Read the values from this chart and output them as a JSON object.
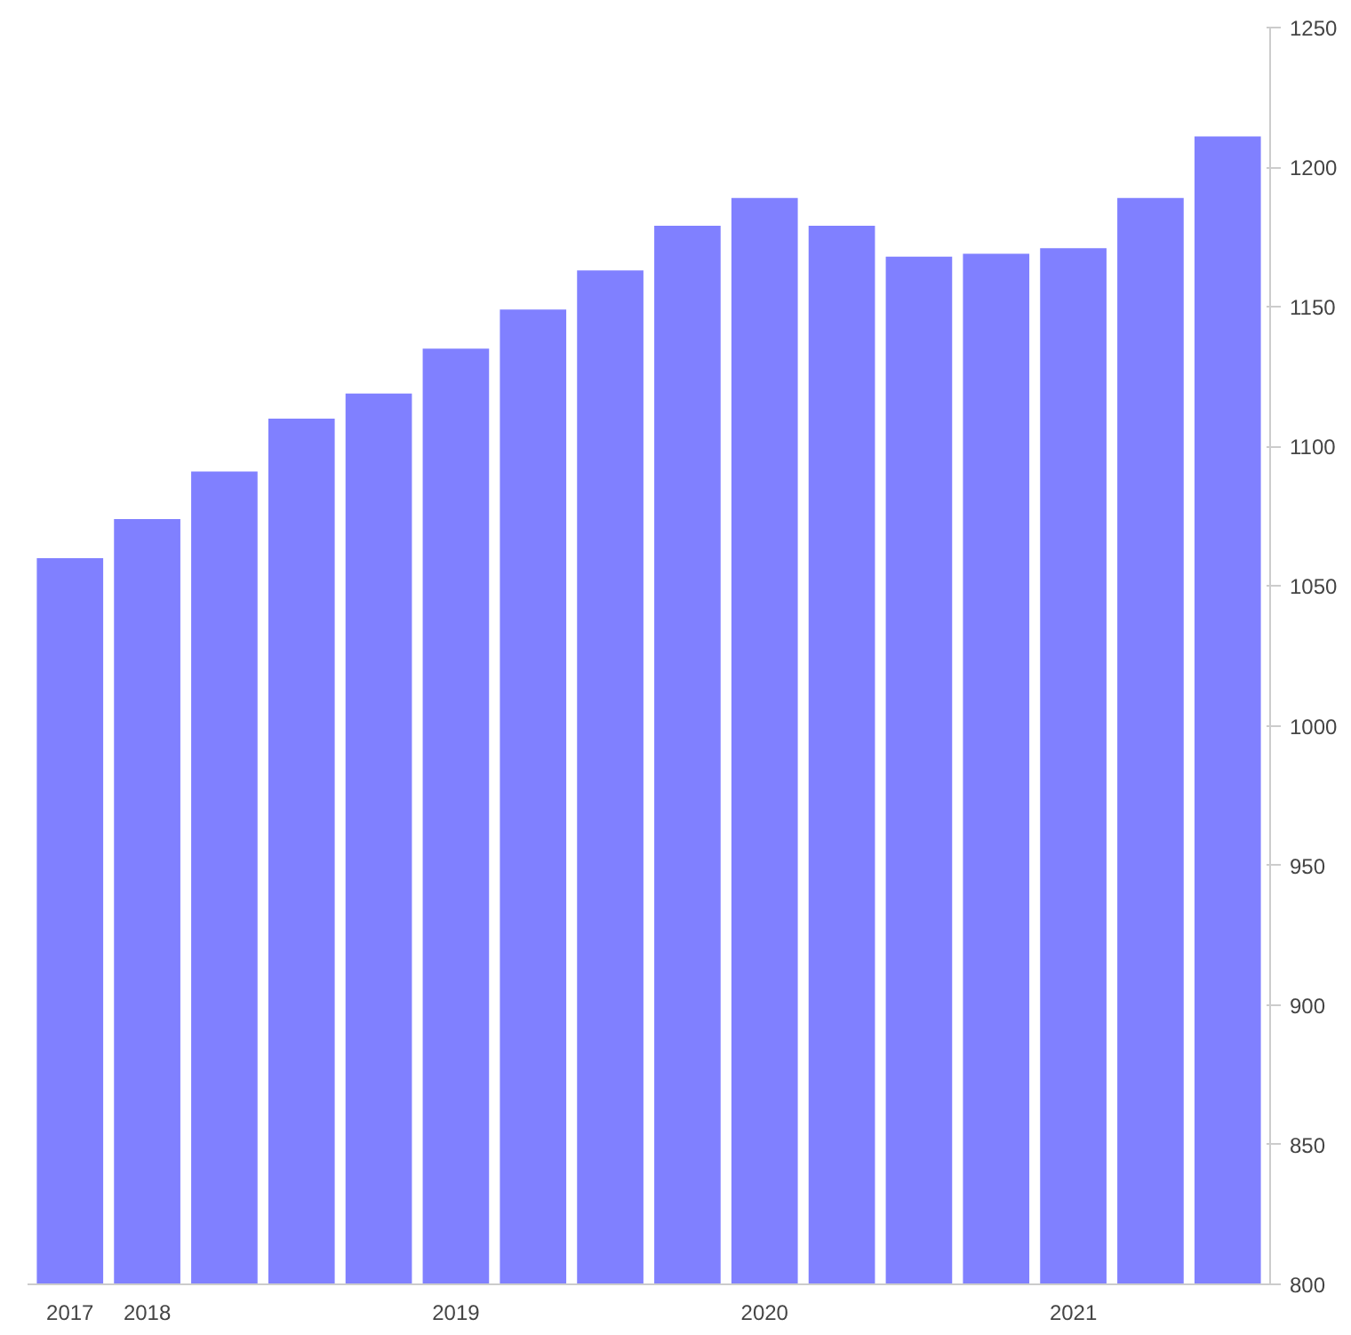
{
  "chart_data": {
    "type": "bar",
    "categories": [
      "2017",
      "2018",
      null,
      null,
      null,
      "2019",
      null,
      null,
      null,
      "2020",
      null,
      null,
      null,
      "2021",
      null,
      null
    ],
    "values": [
      1060,
      1074,
      1091,
      1110,
      1119,
      1135,
      1149,
      1163,
      1179,
      1189,
      1179,
      1168,
      1169,
      1171,
      1189,
      1211
    ],
    "color": "#8080ff",
    "ylim": [
      800,
      1250
    ],
    "yticks": [
      800,
      850,
      900,
      950,
      1000,
      1050,
      1100,
      1150,
      1200,
      1250
    ],
    "grid": false
  }
}
